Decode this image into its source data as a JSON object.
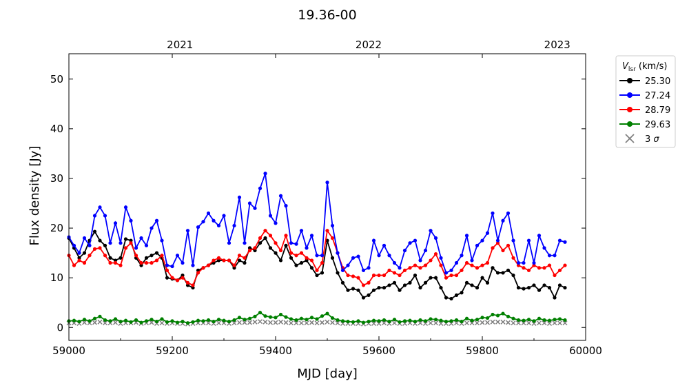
{
  "chart_data": {
    "type": "line",
    "title": "19.36-00",
    "xlabel": "MJD [day]",
    "ylabel": "Flux density [Jy]",
    "xlim": [
      59000,
      60000
    ],
    "ylim": [
      -2.6,
      55.1
    ],
    "xticks": [
      59000,
      59200,
      59400,
      59600,
      59800,
      60000
    ],
    "xtick_labels": [
      "59000",
      "59200",
      "59400",
      "59600",
      "59800",
      "60000"
    ],
    "yticks": [
      0,
      10,
      20,
      30,
      40,
      50
    ],
    "ytick_labels": [
      "0",
      "10",
      "20",
      "30",
      "40",
      "50"
    ],
    "top_axis": {
      "ticks": [
        59215,
        59580,
        59945
      ],
      "labels": [
        "2021",
        "2022",
        "2023"
      ]
    },
    "grid": false,
    "legend": {
      "title_main": "V",
      "title_sub": "lsr",
      "title_unit": " (km/s)",
      "placement": "outside-top-right"
    },
    "x": [
      59000,
      59010,
      59020,
      59030,
      59040,
      59050,
      59060,
      59070,
      59080,
      59090,
      59100,
      59110,
      59120,
      59130,
      59140,
      59150,
      59160,
      59170,
      59180,
      59190,
      59200,
      59210,
      59220,
      59230,
      59240,
      59250,
      59260,
      59270,
      59280,
      59290,
      59300,
      59310,
      59320,
      59330,
      59340,
      59350,
      59360,
      59370,
      59380,
      59390,
      59400,
      59410,
      59420,
      59430,
      59440,
      59450,
      59460,
      59470,
      59480,
      59490,
      59500,
      59510,
      59520,
      59530,
      59540,
      59550,
      59560,
      59570,
      59580,
      59590,
      59600,
      59610,
      59620,
      59630,
      59640,
      59650,
      59660,
      59670,
      59680,
      59690,
      59700,
      59710,
      59720,
      59730,
      59740,
      59750,
      59760,
      59770,
      59780,
      59790,
      59800,
      59810,
      59820,
      59830,
      59840,
      59850,
      59860,
      59870,
      59880,
      59890,
      59900,
      59910,
      59920,
      59930,
      59940,
      59950,
      59960
    ],
    "series": [
      {
        "name": "25.30",
        "color": "#000000",
        "marker": "o",
        "values": [
          18,
          16,
          14,
          15,
          17.5,
          19.3,
          17.5,
          16.5,
          14,
          13.5,
          14,
          17.8,
          17.5,
          14,
          12.5,
          14,
          14.5,
          15,
          14,
          10,
          9.8,
          9.5,
          10.5,
          8.5,
          8,
          11.5,
          12,
          12.5,
          13,
          13.5,
          13.5,
          13.5,
          12,
          13.5,
          13,
          16,
          15.5,
          17,
          18,
          16,
          15,
          13.5,
          16.5,
          14,
          12.5,
          13,
          13.5,
          12,
          10.5,
          11,
          17.5,
          14,
          11,
          9,
          7.5,
          7.8,
          7.5,
          6,
          6.5,
          7.5,
          8,
          8,
          8.5,
          9,
          7.5,
          8.5,
          9,
          10.5,
          8,
          9,
          10,
          10,
          8,
          6,
          5.8,
          6.5,
          7,
          9,
          8.5,
          8,
          10,
          9,
          12,
          11,
          11,
          11.5,
          10.5,
          8,
          7.8,
          8,
          8.5,
          7.5,
          8.5,
          8,
          6,
          8.5,
          8
        ]
      },
      {
        "name": "27.24",
        "color": "#0000ff",
        "marker": "o",
        "values": [
          18.2,
          16.5,
          15,
          18,
          16.5,
          22.5,
          24.2,
          22.5,
          17,
          21,
          17,
          24.2,
          21.5,
          16,
          18,
          16.5,
          20,
          21.5,
          17.5,
          12.5,
          12.3,
          14.5,
          13,
          19.5,
          12.5,
          20.2,
          21.3,
          23,
          21.5,
          20.5,
          22.5,
          17,
          20.5,
          26.2,
          17,
          25,
          24,
          28,
          31,
          22.5,
          21,
          26.5,
          24.5,
          17,
          16.8,
          19.5,
          16,
          18.5,
          14.5,
          14.5,
          29.2,
          20.5,
          15,
          11.5,
          12.5,
          14,
          14.3,
          11.5,
          12,
          17.5,
          14.5,
          16.5,
          14.5,
          13,
          12,
          15.5,
          17,
          17.5,
          13.5,
          15.5,
          19.5,
          18,
          14,
          11,
          11.5,
          13,
          14.5,
          18.5,
          13.5,
          16.5,
          17.5,
          19,
          23,
          17.5,
          21.5,
          23,
          17.5,
          13,
          13,
          17.5,
          13,
          18.5,
          16,
          14.5,
          14.5,
          17.5,
          17.2
        ]
      },
      {
        "name": "28.79",
        "color": "#ff0000",
        "marker": "o",
        "values": [
          14.5,
          12.5,
          13.5,
          13,
          14.5,
          15.8,
          16,
          14.5,
          13,
          13,
          12.5,
          16,
          17,
          14.5,
          13,
          13,
          13,
          13.5,
          14.5,
          11.5,
          10,
          9.5,
          10,
          9,
          8.5,
          11,
          12,
          12.5,
          13.5,
          14,
          13.5,
          13.5,
          12.5,
          14.5,
          14,
          15.5,
          16,
          18,
          19.5,
          18.5,
          17,
          15.5,
          18.5,
          15,
          14.5,
          15,
          14,
          13.5,
          11.5,
          13,
          19.5,
          18,
          15,
          12,
          10.5,
          10.3,
          10,
          8.5,
          9,
          10.5,
          10.5,
          10.5,
          11.5,
          11,
          10.5,
          11.5,
          12,
          12.5,
          12,
          12.5,
          13.5,
          14.8,
          12.5,
          10,
          10.5,
          10.5,
          11.5,
          13,
          12.5,
          12,
          12.5,
          13,
          16,
          17,
          15.5,
          16.5,
          14,
          12.5,
          12,
          11.5,
          12.5,
          12,
          12,
          12.5,
          10.5,
          11.5,
          12.5
        ]
      },
      {
        "name": "29.63",
        "color": "#008000",
        "marker": "o",
        "values": [
          1.3,
          1.4,
          1.2,
          1.6,
          1.3,
          1.8,
          2.2,
          1.5,
          1.3,
          1.7,
          1.2,
          1.4,
          1.1,
          1.5,
          1.0,
          1.3,
          1.6,
          1.2,
          1.7,
          1.1,
          1.3,
          1.0,
          1.2,
          0.9,
          1.1,
          1.4,
          1.3,
          1.5,
          1.2,
          1.6,
          1.4,
          1.2,
          1.5,
          2.0,
          1.6,
          1.8,
          2.2,
          3.0,
          2.3,
          2.1,
          2.0,
          2.6,
          2.1,
          1.7,
          1.5,
          1.8,
          1.6,
          2.0,
          1.7,
          2.3,
          2.8,
          1.9,
          1.5,
          1.3,
          1.2,
          1.1,
          1.3,
          1.0,
          1.2,
          1.4,
          1.3,
          1.5,
          1.2,
          1.6,
          1.1,
          1.3,
          1.4,
          1.2,
          1.5,
          1.3,
          1.7,
          1.6,
          1.4,
          1.2,
          1.3,
          1.5,
          1.2,
          1.8,
          1.4,
          1.6,
          2.0,
          1.9,
          2.6,
          2.4,
          2.8,
          2.2,
          1.8,
          1.5,
          1.4,
          1.6,
          1.3,
          1.8,
          1.5,
          1.4,
          1.6,
          1.7,
          1.5
        ]
      },
      {
        "name": "3 σ",
        "color": "#808080",
        "marker": "x",
        "values": [
          0.9,
          0.9,
          0.8,
          1.0,
          0.9,
          1.0,
          1.1,
          0.9,
          0.9,
          1.0,
          0.8,
          0.9,
          0.9,
          1.0,
          0.8,
          0.9,
          1.0,
          0.8,
          0.9,
          0.8,
          0.9,
          0.8,
          0.8,
          0.7,
          0.8,
          0.9,
          0.9,
          0.9,
          0.8,
          0.9,
          0.9,
          0.8,
          0.9,
          1.0,
          1.0,
          1.0,
          1.1,
          1.2,
          1.1,
          1.0,
          1.0,
          1.1,
          1.0,
          0.9,
          0.9,
          0.9,
          0.9,
          1.0,
          0.9,
          1.0,
          1.1,
          1.0,
          0.9,
          0.8,
          0.8,
          0.8,
          0.8,
          0.7,
          0.8,
          0.8,
          0.8,
          0.9,
          0.8,
          0.9,
          0.8,
          0.8,
          0.9,
          0.8,
          0.9,
          0.8,
          0.9,
          0.9,
          0.8,
          0.8,
          0.8,
          0.9,
          0.8,
          0.9,
          0.9,
          0.9,
          1.0,
          1.0,
          1.1,
          1.1,
          1.1,
          1.0,
          0.9,
          0.9,
          0.9,
          0.9,
          0.8,
          0.9,
          0.9,
          0.8,
          0.9,
          0.9,
          0.9
        ]
      }
    ]
  }
}
